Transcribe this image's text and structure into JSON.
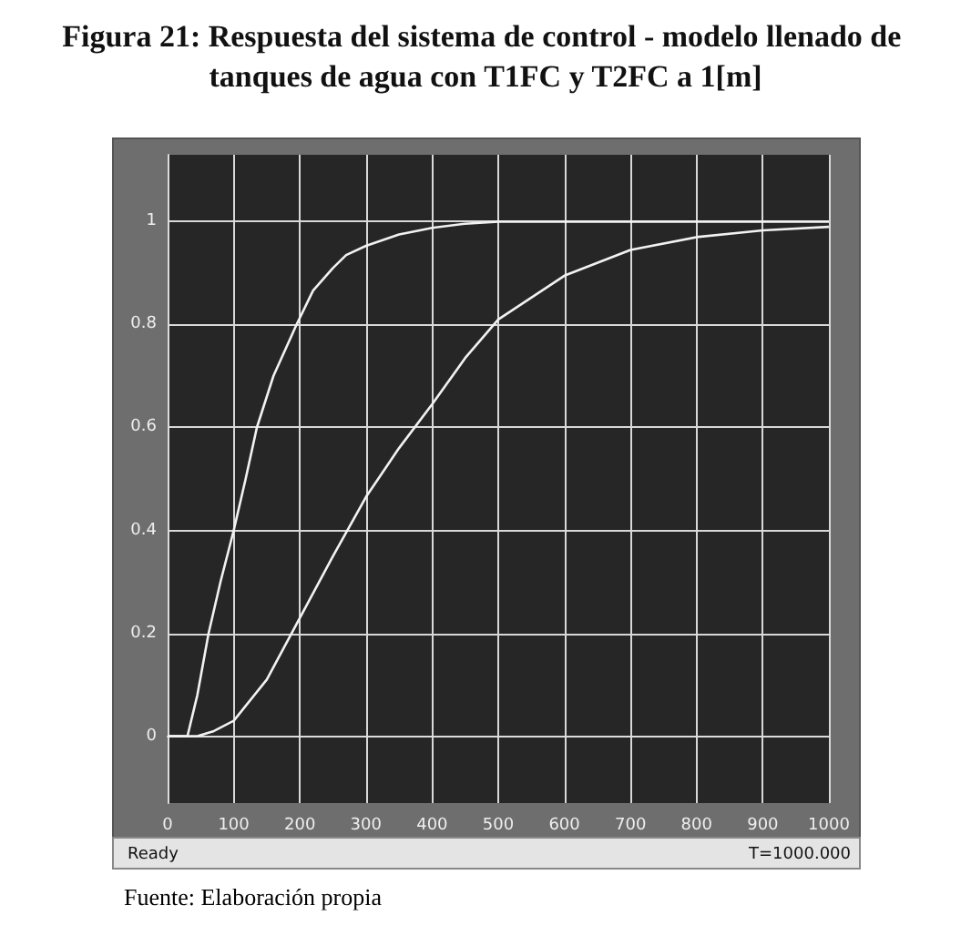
{
  "chart_data": {
    "type": "line",
    "title": "Figura 21: Respuesta del sistema de control - modelo llenado de tanques de agua con T1FC y T2FC a 1[m]",
    "series": [
      {
        "color": "#f2f2f2",
        "x": [
          0,
          30,
          45,
          62,
          80,
          100,
          118,
          135,
          160,
          195,
          220,
          250,
          270,
          300,
          350,
          400,
          450,
          500,
          1000
        ],
        "values": [
          0,
          0,
          0.08,
          0.2,
          0.3,
          0.4,
          0.5,
          0.6,
          0.7,
          0.8,
          0.866,
          0.91,
          0.935,
          0.953,
          0.975,
          0.988,
          0.996,
          1,
          1
        ]
      },
      {
        "color": "#f2f2f2",
        "x": [
          0,
          45,
          70,
          100,
          150,
          200,
          250,
          300,
          350,
          400,
          450,
          500,
          600,
          700,
          800,
          900,
          1000
        ],
        "values": [
          0,
          0,
          0.01,
          0.03,
          0.11,
          0.23,
          0.35,
          0.465,
          0.56,
          0.645,
          0.735,
          0.81,
          0.895,
          0.945,
          0.97,
          0.983,
          0.99
        ]
      }
    ],
    "xlim": [
      0,
      1000
    ],
    "xticks": [
      0,
      100,
      200,
      300,
      400,
      500,
      600,
      700,
      800,
      900,
      1000
    ],
    "ylim": [
      -0.13,
      1.13
    ],
    "yticks": [
      0,
      0.2,
      0.4,
      0.6,
      0.8,
      1
    ],
    "grid": true,
    "marker": "none",
    "line_style": "solid",
    "annotations": [
      "Ready",
      "T=1000.000",
      "Fuente: Elaboración propia"
    ]
  }
}
